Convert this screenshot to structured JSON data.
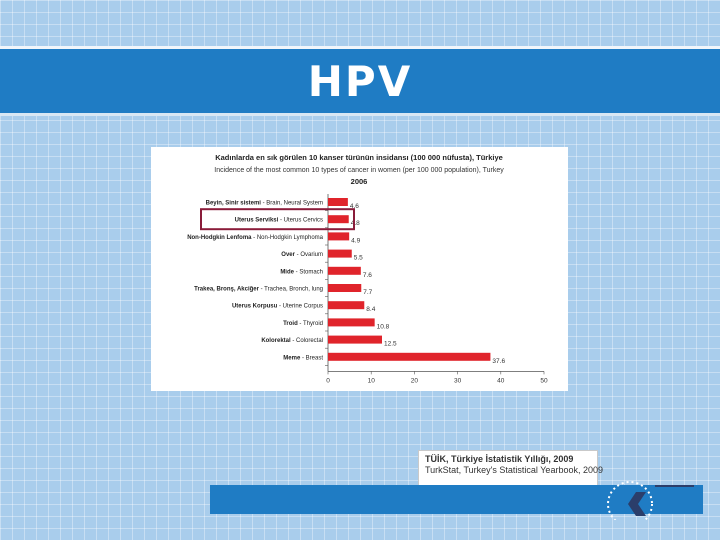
{
  "slide": {
    "title": "HPV"
  },
  "source": {
    "line1": "TÜİK, Türkiye İstatistik Yıllığı, 2009",
    "line2": "TurkStat, Turkey's Statistical Yearbook, 2009"
  },
  "colors": {
    "title_bar": "#1f7cc4",
    "bar": "#e0242b",
    "highlight_box": "#8a1c3a"
  },
  "chart_data": {
    "type": "bar",
    "orientation": "horizontal",
    "title": "Kadınlarda en sık görülen 10 kanser türünün insidansı (100 000 nüfusta), Türkiye",
    "subtitle": "Incidence of the most common 10 types of cancer in women (per 100 000 population), Turkey",
    "year": "2006",
    "categories": [
      {
        "tr": "Beyin, Sinir sistemi",
        "en": " - Brain, Neural System"
      },
      {
        "tr": "Uterus Serviksi",
        "en": " - Uterus Cervics"
      },
      {
        "tr": "Non-Hodgkin Lenfoma",
        "en": " - Non-Hodgkin Lymphoma"
      },
      {
        "tr": "Over",
        "en": " - Ovarium"
      },
      {
        "tr": "Mide",
        "en": " - Stomach"
      },
      {
        "tr": "Trakea, Bronş, Akciğer",
        "en": " - Trachea, Bronch, lung"
      },
      {
        "tr": "Uterus Korpusu",
        "en": " - Uterine Corpus"
      },
      {
        "tr": "Troid",
        "en": " - Thyroid"
      },
      {
        "tr": "Kolorektal",
        "en": " - Colorectal"
      },
      {
        "tr": "Meme",
        "en": " - Breast"
      }
    ],
    "values": [
      4.6,
      4.8,
      4.9,
      5.5,
      7.6,
      7.7,
      8.4,
      10.8,
      12.5,
      37.6
    ],
    "value_labels": [
      "4.6",
      "4.8",
      "4.9",
      "5.5",
      "7.6",
      "7.7",
      "8.4",
      "10.8",
      "12.5",
      "37.6"
    ],
    "xlim": [
      0,
      50
    ],
    "xticks": [
      "0",
      "10",
      "20",
      "30",
      "40",
      "50"
    ],
    "highlighted_category_index": 1,
    "grid": false
  }
}
